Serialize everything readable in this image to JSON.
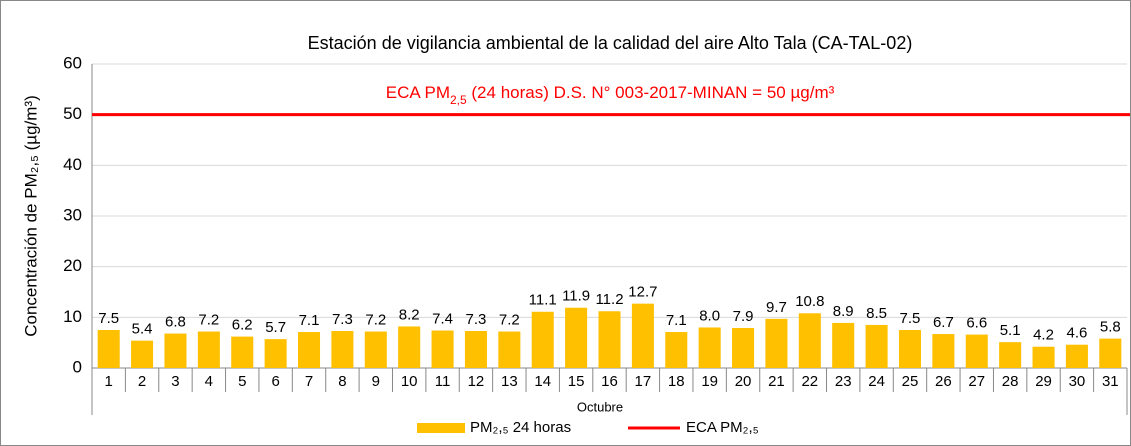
{
  "chart_data": {
    "type": "bar",
    "title": "Estación de vigilancia ambiental de la calidad del aire Alto Tala (CA-TAL-02)",
    "annotation": [
      "ECA PM",
      "2,5",
      " (24 horas) D.S. N° 003-2017-MINAN = 50 µg/m³"
    ],
    "y_label": "Concentración de PM₂,₅ (µg/m³)",
    "x_label": "Octubre",
    "categories": [
      "1",
      "2",
      "3",
      "4",
      "5",
      "6",
      "7",
      "8",
      "9",
      "10",
      "11",
      "12",
      "13",
      "14",
      "15",
      "16",
      "17",
      "18",
      "19",
      "20",
      "21",
      "22",
      "23",
      "24",
      "25",
      "26",
      "27",
      "28",
      "29",
      "30",
      "31"
    ],
    "series": [
      {
        "name": "PM₂,₅ 24 horas",
        "color": "#ffc000",
        "values": [
          7.5,
          5.4,
          6.8,
          7.2,
          6.2,
          5.7,
          7.1,
          7.3,
          7.2,
          8.2,
          7.4,
          7.3,
          7.2,
          11.1,
          11.9,
          11.2,
          12.7,
          7.1,
          8.0,
          7.9,
          9.7,
          10.8,
          8.9,
          8.5,
          7.5,
          6.7,
          6.6,
          5.1,
          4.2,
          4.6,
          5.8
        ],
        "value_labels": [
          "7.5",
          "5.4",
          "6.8",
          "7.2",
          "6.2",
          "5.7",
          "7.1",
          "7.3",
          "7.2",
          "8.2",
          "7.4",
          "7.3",
          "7.2",
          "11.1",
          "11.9",
          "11.2",
          "12.7",
          "7.1",
          "8.0",
          "7.9",
          "9.7",
          "10.8",
          "8.9",
          "8.5",
          "7.5",
          "6.7",
          "6.6",
          "5.1",
          "4.2",
          "4.6",
          "5.8"
        ]
      }
    ],
    "reference_line": {
      "name": "ECA PM₂,₅",
      "value": 50,
      "color": "#ff0000"
    },
    "ylim": [
      0,
      60
    ],
    "yticks": [
      0,
      10,
      20,
      30,
      40,
      50,
      60
    ],
    "grid": true,
    "legend": "bottom"
  }
}
